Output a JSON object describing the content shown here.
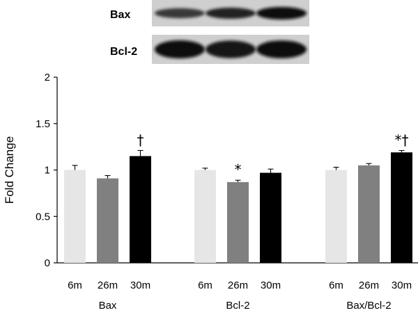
{
  "blot": {
    "rows": [
      {
        "label": "Bax",
        "intensity": [
          0.55,
          0.75,
          1.0
        ]
      },
      {
        "label": "Bcl-2",
        "intensity": [
          1.0,
          0.9,
          0.95
        ]
      }
    ]
  },
  "chart_data": {
    "type": "bar",
    "ylabel": "Fold Change",
    "ylim": [
      0,
      2
    ],
    "yticks": [
      0,
      0.5,
      1,
      1.5,
      2
    ],
    "ytick_labels": [
      "0",
      "0.5",
      "1",
      "1.5",
      "2"
    ],
    "grid": false,
    "legend": "none",
    "sub_categories": [
      "6m",
      "26m",
      "30m"
    ],
    "bar_colors": [
      "#e6e6e6",
      "#808080",
      "#000000"
    ],
    "groups": [
      {
        "name": "Bax",
        "values": [
          1.0,
          0.91,
          1.15
        ],
        "errors": [
          0.05,
          0.03,
          0.06
        ],
        "annotations": [
          "",
          "",
          "†"
        ]
      },
      {
        "name": "Bcl-2",
        "values": [
          1.0,
          0.87,
          0.97
        ],
        "errors": [
          0.02,
          0.02,
          0.04
        ],
        "annotations": [
          "",
          "*",
          ""
        ]
      },
      {
        "name": "Bax/Bcl-2",
        "values": [
          1.0,
          1.05,
          1.19
        ],
        "errors": [
          0.03,
          0.02,
          0.02
        ],
        "annotations": [
          "",
          "",
          "*†"
        ]
      }
    ]
  }
}
